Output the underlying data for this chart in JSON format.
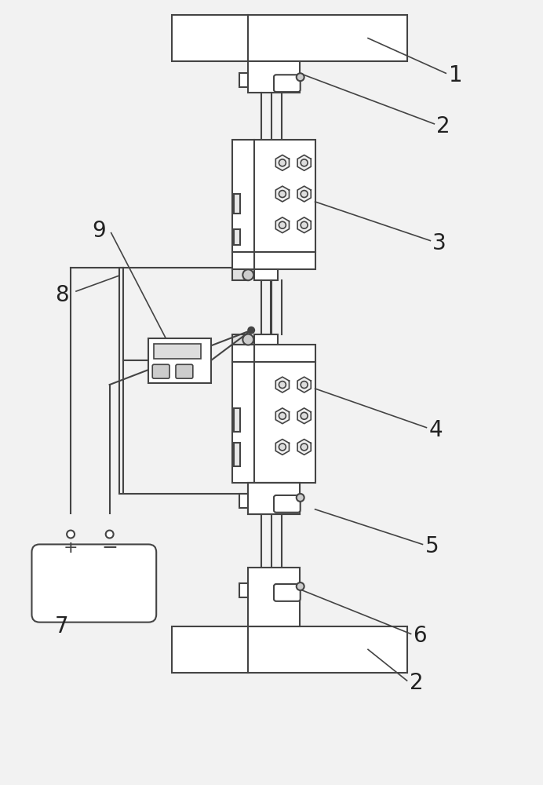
{
  "bg_color": "#f2f2f2",
  "line_color": "#444444",
  "fill_color": "#ffffff",
  "line_width": 1.5,
  "label_fontsize": 20
}
